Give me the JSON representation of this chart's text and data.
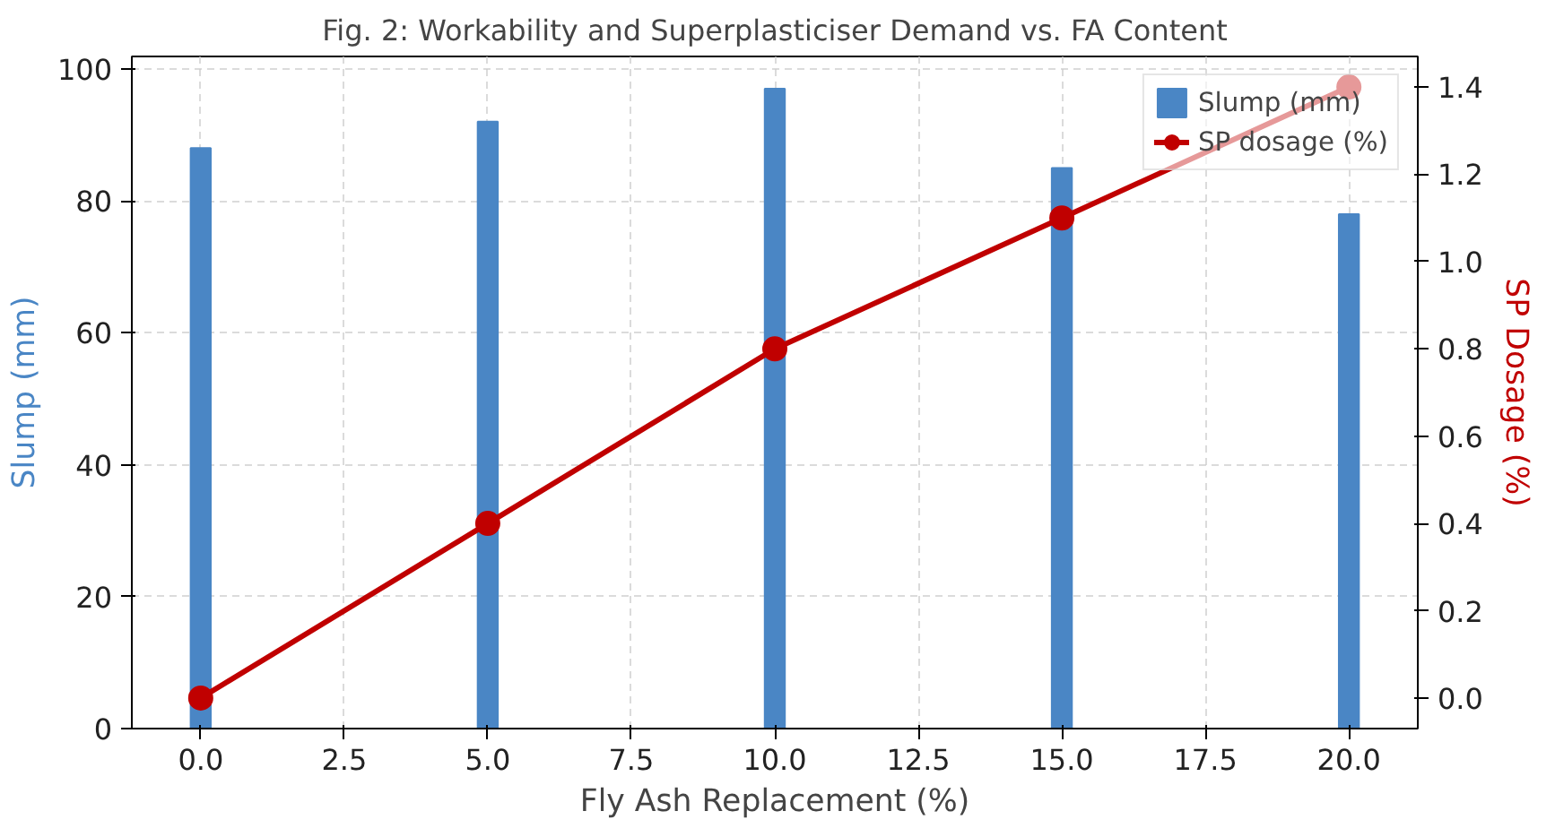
{
  "chart_data": {
    "type": "bar",
    "title": "Fig. 2: Workability and Superplasticiser Demand vs. FA Content",
    "x": [
      0,
      5,
      10,
      15,
      20
    ],
    "xlabel": "Fly Ash Replacement (%)",
    "ylabel": "Slump (mm)",
    "y2label": "SP Dosage (%)",
    "series": [
      {
        "name": "Slump (mm)",
        "color": "#4a86c5",
        "values": [
          88,
          92,
          97,
          85,
          78
        ]
      },
      {
        "name": "SP dosage (%)",
        "type": "line",
        "axis": "y2",
        "color": "#c00000",
        "values": [
          0.0,
          0.4,
          0.8,
          1.1,
          1.4
        ],
        "marker": "circle",
        "line_style": "solid"
      }
    ],
    "xlim": [
      -1.2,
      21.2
    ],
    "xticks": [
      {
        "value": 0,
        "label": "0.0"
      },
      {
        "value": 2.5,
        "label": "2.5"
      },
      {
        "value": 5,
        "label": "5.0"
      },
      {
        "value": 7.5,
        "label": "7.5"
      },
      {
        "value": 10,
        "label": "10.0"
      },
      {
        "value": 12.5,
        "label": "12.5"
      },
      {
        "value": 15,
        "label": "15.0"
      },
      {
        "value": 17.5,
        "label": "17.5"
      },
      {
        "value": 20,
        "label": "20.0"
      }
    ],
    "ylim": [
      0,
      101.9
    ],
    "yticks": [
      0,
      20,
      40,
      60,
      80,
      100
    ],
    "y2lim": [
      -0.07,
      1.47
    ],
    "y2ticks": [
      {
        "value": 0,
        "label": "0.0"
      },
      {
        "value": 0.2,
        "label": "0.2"
      },
      {
        "value": 0.4,
        "label": "0.4"
      },
      {
        "value": 0.6,
        "label": "0.6"
      },
      {
        "value": 0.8,
        "label": "0.8"
      },
      {
        "value": 1.0,
        "label": "1.0"
      },
      {
        "value": 1.2,
        "label": "1.2"
      },
      {
        "value": 1.4,
        "label": "1.4"
      }
    ],
    "grid": true,
    "legend": "top right"
  }
}
